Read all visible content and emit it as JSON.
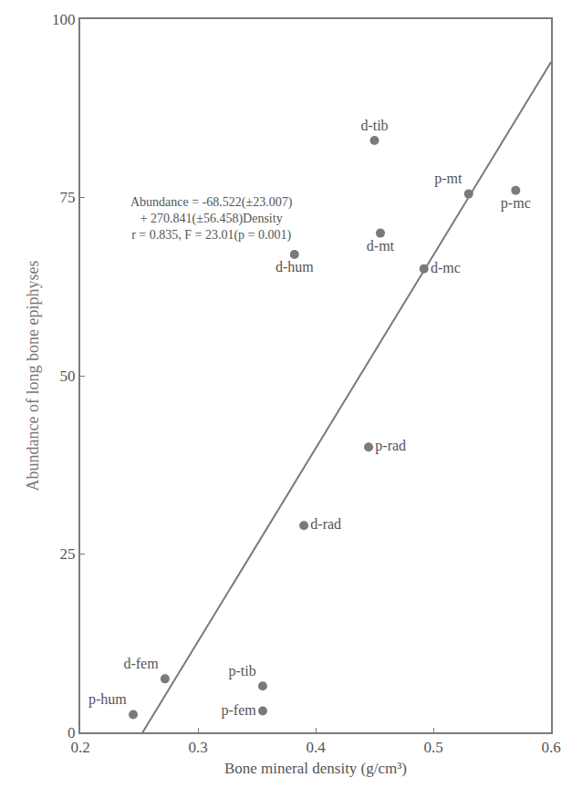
{
  "chart_data": {
    "type": "scatter",
    "x_label": "Bone mineral density (g/cm³)",
    "y_label": "Abundance of long bone epiphyses",
    "x": [
      0.245,
      0.272,
      0.355,
      0.355,
      0.39,
      0.445,
      0.382,
      0.455,
      0.45,
      0.492,
      0.53,
      0.57
    ],
    "values": [
      2.5,
      7.5,
      6.5,
      3,
      29,
      40,
      67,
      70,
      83,
      65,
      75.5,
      76
    ],
    "labels": [
      "p-hum",
      "d-fem",
      "p-tib",
      "p-fem",
      "d-rad",
      "p-rad",
      "d-hum",
      "d-mt",
      "d-tib",
      "d-mc",
      "p-mt",
      "p-mc"
    ],
    "fit": {
      "intercept": -68.522,
      "slope": 270.841
    },
    "annotations": [
      "Abundance = -68.522(±23.007)",
      "+ 270.841(±56.458)Density",
      "r = 0.835, F = 23.01(p = 0.001)"
    ],
    "color": "#7a7a7a",
    "xlim": [
      0.2,
      0.6
    ],
    "ylim": [
      0,
      100
    ],
    "xticks": [
      0.2,
      0.3,
      0.4,
      0.5,
      0.6
    ],
    "yticks": [
      0,
      25,
      50,
      75,
      100
    ],
    "grid": false
  }
}
